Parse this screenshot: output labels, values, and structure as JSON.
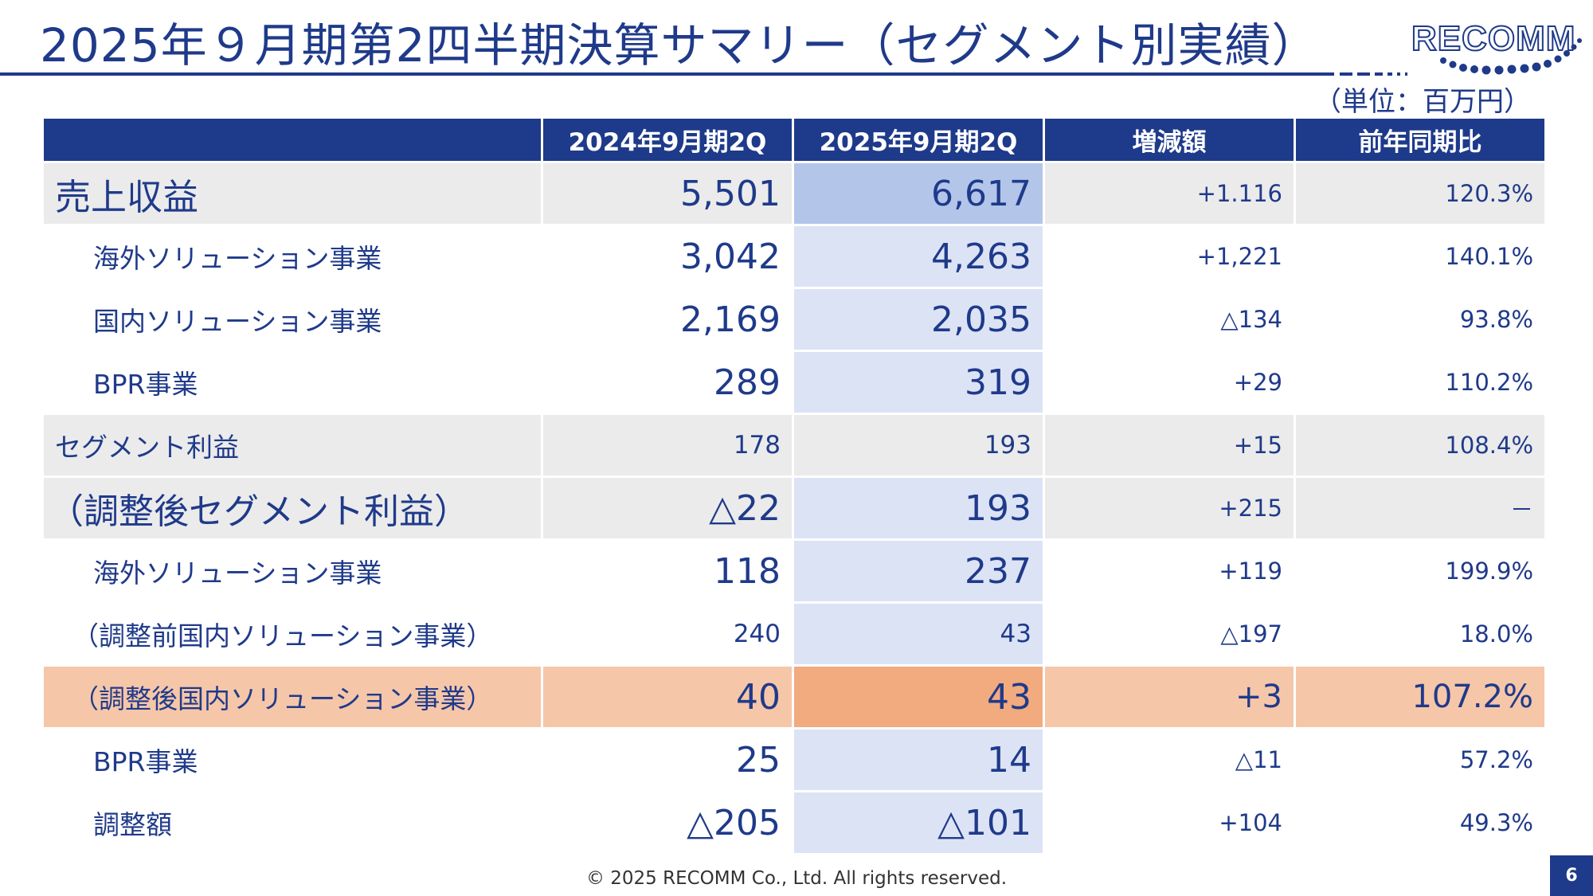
{
  "header": {
    "title": "2025年９月期第2四半期決算サマリー（セグメント別実績）",
    "unit": "（単位：百万円）",
    "logo_text": "RECOMM"
  },
  "table": {
    "columns": [
      "",
      "2024年9月期2Q",
      "2025年9月期2Q",
      "増減額",
      "前年同期比"
    ],
    "rows": [
      {
        "label": "売上収益",
        "prev": "5,501",
        "curr": "6,617",
        "diff": "+1.116",
        "ratio": "120.3%"
      },
      {
        "label": "海外ソリューション事業",
        "prev": "3,042",
        "curr": "4,263",
        "diff": "+1,221",
        "ratio": "140.1%"
      },
      {
        "label": "国内ソリューション事業",
        "prev": "2,169",
        "curr": "2,035",
        "diff": "△134",
        "ratio": "93.8%"
      },
      {
        "label": "BPR事業",
        "prev": "289",
        "curr": "319",
        "diff": "+29",
        "ratio": "110.2%"
      },
      {
        "label": "セグメント利益",
        "prev": "178",
        "curr": "193",
        "diff": "+15",
        "ratio": "108.4%"
      },
      {
        "label": "（調整後セグメント利益）",
        "prev": "△22",
        "curr": "193",
        "diff": "+215",
        "ratio": "－"
      },
      {
        "label": "海外ソリューション事業",
        "prev": "118",
        "curr": "237",
        "diff": "+119",
        "ratio": "199.9%"
      },
      {
        "label": "（調整前国内ソリューション事業）",
        "prev": "240",
        "curr": "43",
        "diff": "△197",
        "ratio": "18.0%"
      },
      {
        "label": "（調整後国内ソリューション事業）",
        "prev": "40",
        "curr": "43",
        "diff": "+3",
        "ratio": "107.2%"
      },
      {
        "label": "BPR事業",
        "prev": "25",
        "curr": "14",
        "diff": "△11",
        "ratio": "57.2%"
      },
      {
        "label": "調整額",
        "prev": "△205",
        "curr": "△101",
        "diff": "+104",
        "ratio": "49.3%"
      }
    ]
  },
  "footer": {
    "copyright": "© 2025 RECOMM Co., Ltd. All rights reserved.",
    "page": "6"
  },
  "colors": {
    "brand_navy": "#1e3a8a",
    "highlight_orange": "#f6c6a8",
    "highlight_orange_strong": "#f2aa7f",
    "current_period_blue": "#dce3f5",
    "row_gray": "#ebebeb"
  }
}
